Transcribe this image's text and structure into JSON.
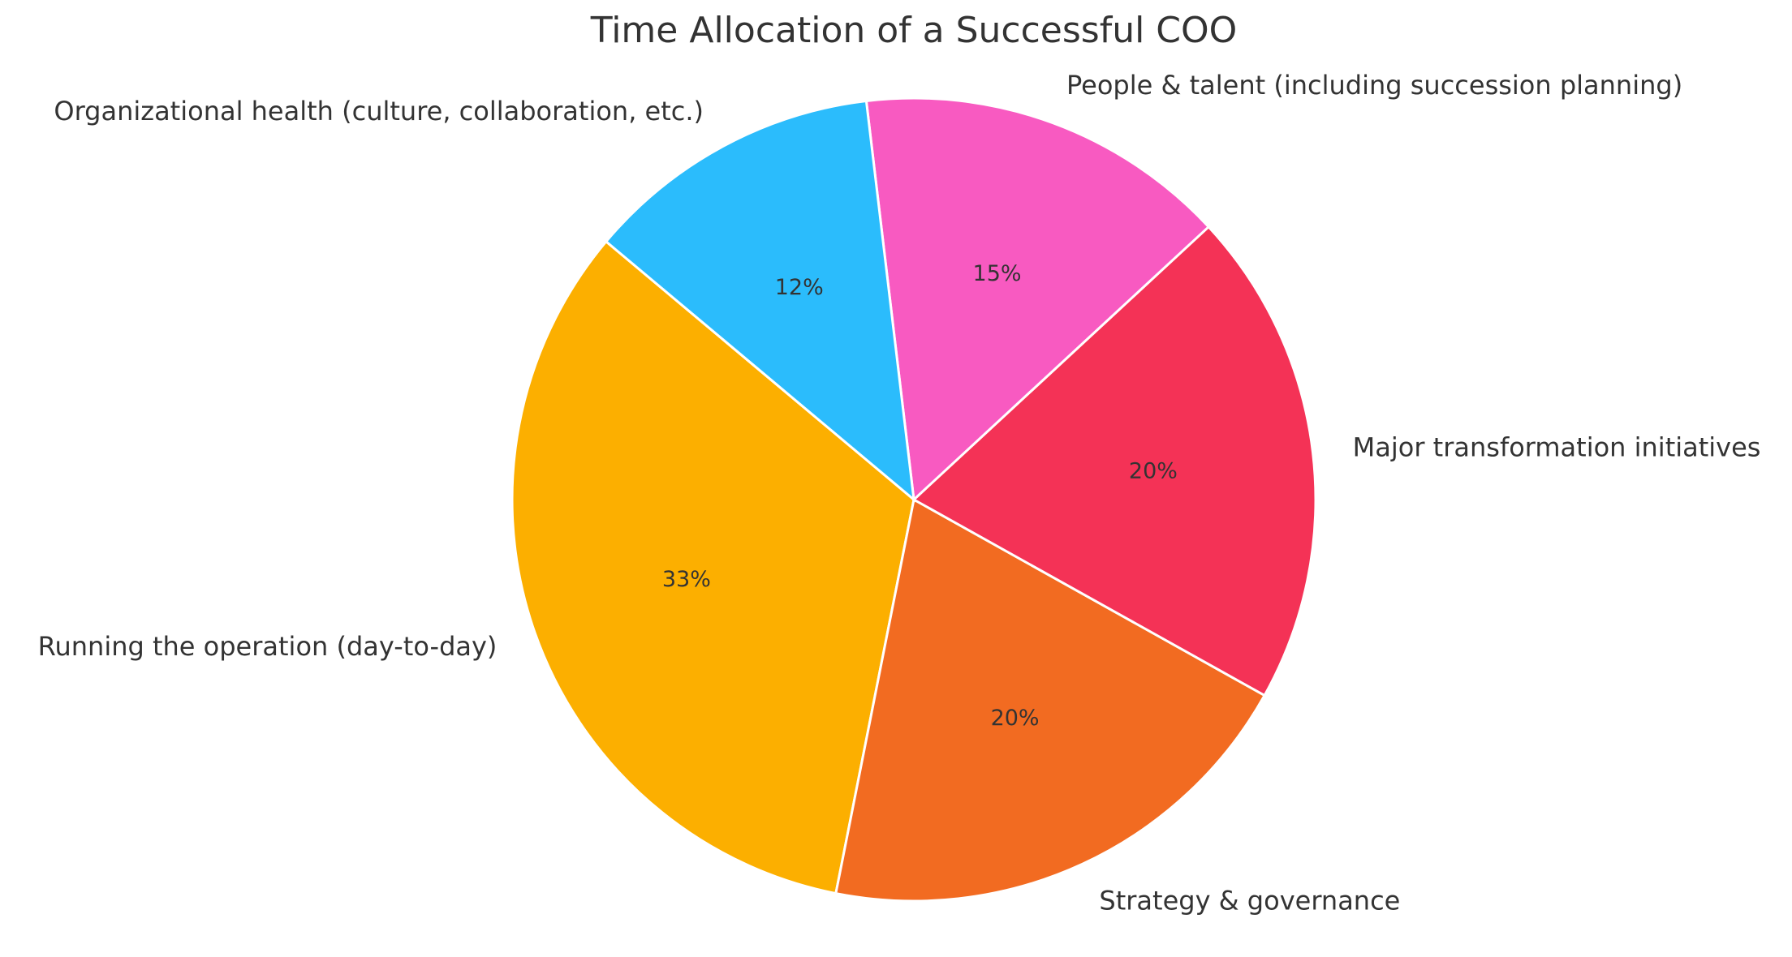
{
  "chart_data": {
    "type": "pie",
    "title": "Time Allocation of a Successful COO",
    "slices": [
      {
        "label": "Running the operation (day-to-day)",
        "value": 33,
        "display": "33%",
        "color": "#FCAF00"
      },
      {
        "label": "Strategy & governance",
        "value": 20,
        "display": "20%",
        "color": "#F26B21"
      },
      {
        "label": "Major transformation initiatives",
        "value": 20,
        "display": "20%",
        "color": "#F43256"
      },
      {
        "label": "People & talent (including succession planning)",
        "value": 15,
        "display": "15%",
        "color": "#F85AC1"
      },
      {
        "label": "Organizational health (culture, collaboration, etc.)",
        "value": 12,
        "display": "12%",
        "color": "#2BBCFC"
      }
    ],
    "start_angle_deg": 140,
    "direction": "counterclockwise",
    "legend": "none"
  }
}
